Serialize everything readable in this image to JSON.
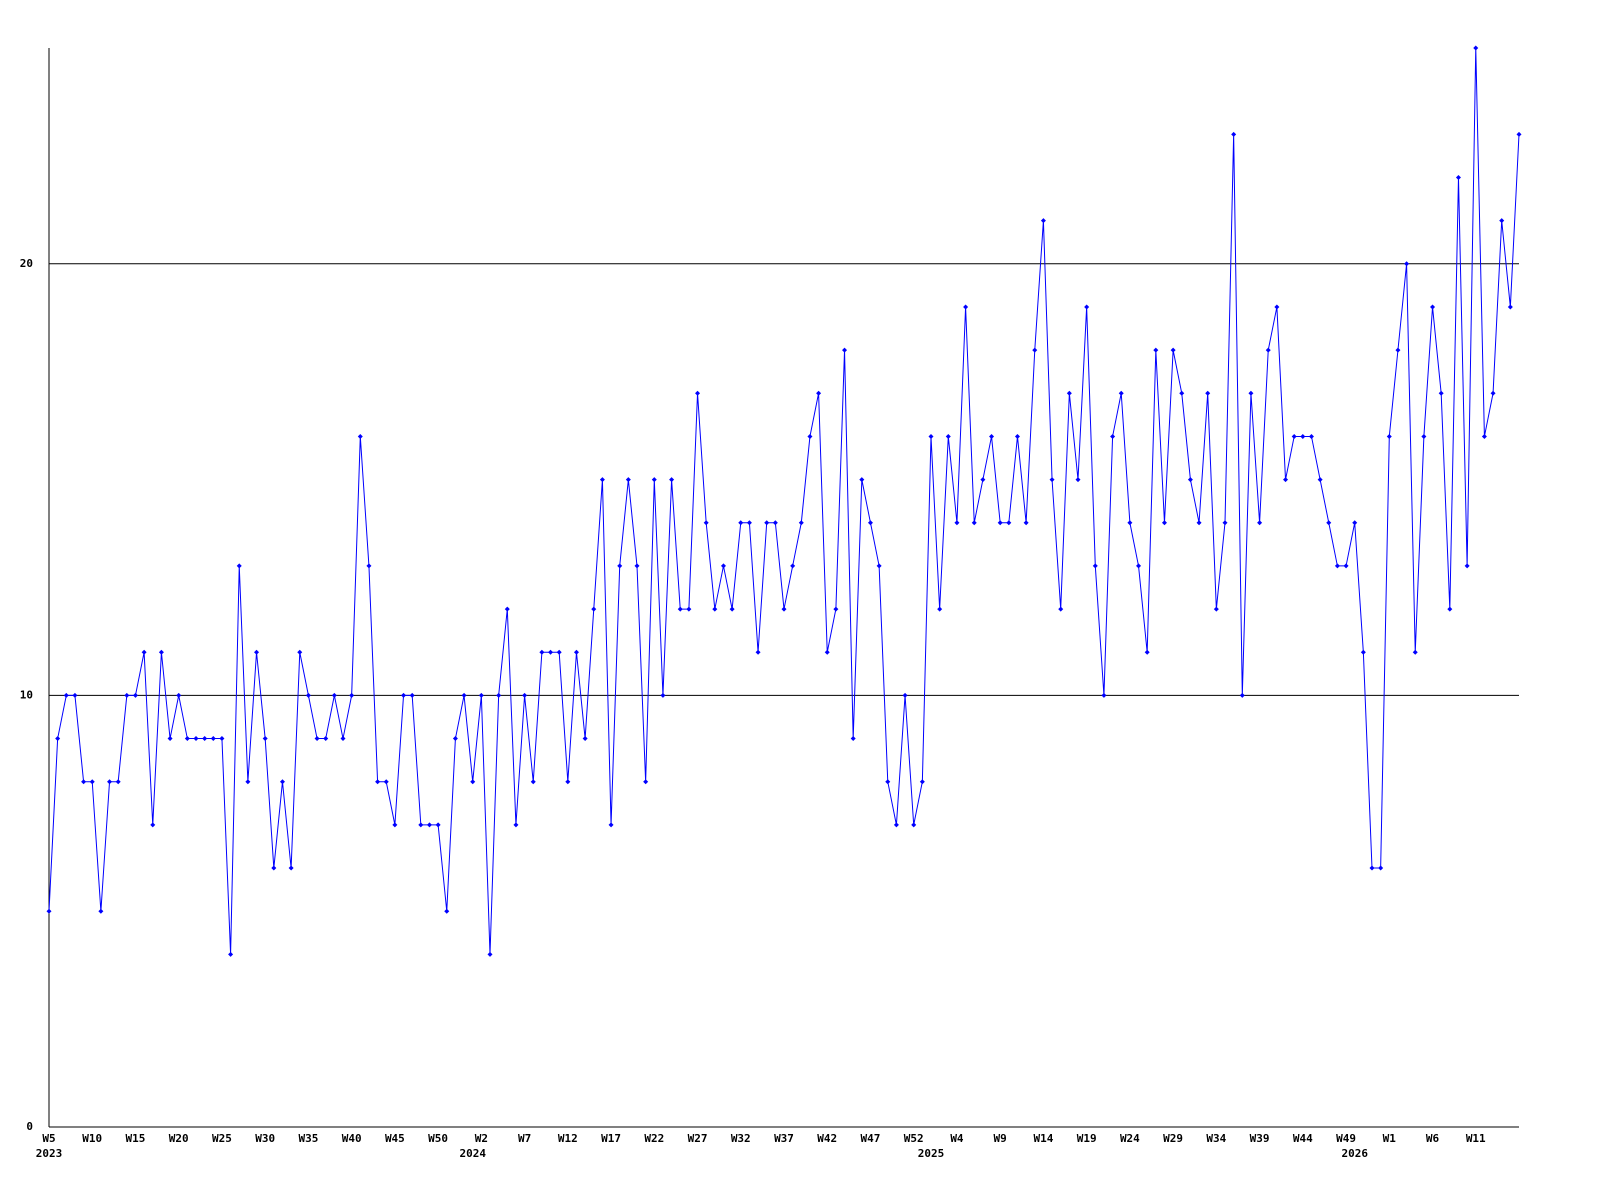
{
  "chart_data": {
    "type": "line",
    "categories": [
      "W5",
      null,
      null,
      null,
      null,
      "W10",
      null,
      null,
      null,
      null,
      "W15",
      null,
      null,
      null,
      null,
      "W20",
      null,
      null,
      null,
      null,
      "W25",
      null,
      null,
      null,
      null,
      "W30",
      null,
      null,
      null,
      null,
      "W35",
      null,
      null,
      null,
      null,
      "W40",
      null,
      null,
      null,
      null,
      "W45",
      null,
      null,
      null,
      null,
      "W50",
      null,
      null,
      null,
      null,
      "W2",
      null,
      null,
      null,
      null,
      "W7",
      null,
      null,
      null,
      null,
      "W12",
      null,
      null,
      null,
      null,
      "W17",
      null,
      null,
      null,
      null,
      "W22",
      null,
      null,
      null,
      null,
      "W27",
      null,
      null,
      null,
      null,
      "W32",
      null,
      null,
      null,
      null,
      "W37",
      null,
      null,
      null,
      null,
      "W42",
      null,
      null,
      null,
      null,
      "W47",
      null,
      null,
      null,
      null,
      "W52",
      null,
      null,
      null,
      null,
      "W4",
      null,
      null,
      null,
      null,
      "W9",
      null,
      null,
      null,
      null,
      "W14",
      null,
      null,
      null,
      null,
      "W19",
      null,
      null,
      null,
      null,
      "W24",
      null,
      null,
      null,
      null,
      "W29",
      null,
      null,
      null,
      null,
      "W34",
      null,
      null,
      null,
      null,
      "W39",
      null,
      null,
      null,
      null,
      "W44",
      null,
      null,
      null,
      null,
      "W49",
      null,
      null,
      null,
      null,
      "W1",
      null,
      null,
      null,
      null,
      "W6",
      null,
      null,
      null,
      null,
      "W11",
      null,
      null,
      null,
      null,
      null
    ],
    "category_years": [
      "2023",
      null,
      null,
      null,
      null,
      null,
      null,
      null,
      null,
      null,
      null,
      null,
      null,
      null,
      null,
      null,
      null,
      null,
      null,
      null,
      null,
      null,
      null,
      null,
      null,
      null,
      null,
      null,
      null,
      null,
      null,
      null,
      null,
      null,
      null,
      null,
      null,
      null,
      null,
      null,
      null,
      null,
      null,
      null,
      null,
      null,
      null,
      null,
      null,
      "2024",
      null,
      null,
      null,
      null,
      null,
      null,
      null,
      null,
      null,
      null,
      null,
      null,
      null,
      null,
      null,
      null,
      null,
      null,
      null,
      null,
      null,
      null,
      null,
      null,
      null,
      null,
      null,
      null,
      null,
      null,
      null,
      null,
      null,
      null,
      null,
      null,
      null,
      null,
      null,
      null,
      null,
      null,
      null,
      null,
      null,
      null,
      null,
      null,
      null,
      null,
      null,
      null,
      "2025",
      null,
      null,
      null,
      null,
      null,
      null,
      null,
      null,
      null,
      null,
      null,
      null,
      null,
      null,
      null,
      null,
      null,
      null,
      null,
      null,
      null,
      null,
      null,
      null,
      null,
      null,
      null,
      null,
      null,
      null,
      null,
      null,
      null,
      null,
      null,
      null,
      null,
      null,
      null,
      null,
      null,
      null,
      null,
      null,
      null,
      null,
      null,
      null,
      "2026",
      null,
      null,
      null,
      null,
      null,
      null,
      null,
      null,
      null,
      null,
      null,
      null,
      null,
      null,
      null
    ],
    "series": [
      {
        "color": "#0000ff",
        "values": [
          5,
          9,
          10,
          10,
          8,
          8,
          5,
          8,
          8,
          10,
          10,
          11,
          7,
          11,
          9,
          10,
          9,
          9,
          9,
          9,
          9,
          4,
          13,
          8,
          11,
          9,
          6,
          8,
          6,
          11,
          10,
          9,
          9,
          10,
          9,
          10,
          16,
          13,
          8,
          8,
          7,
          10,
          10,
          7,
          7,
          7,
          5,
          9,
          10,
          8,
          10,
          4,
          10,
          12,
          7,
          10,
          8,
          11,
          11,
          11,
          8,
          11,
          9,
          12,
          15,
          7,
          13,
          15,
          13,
          8,
          15,
          10,
          15,
          12,
          12,
          17,
          14,
          12,
          13,
          12,
          14,
          14,
          11,
          14,
          14,
          12,
          13,
          14,
          16,
          17,
          11,
          12,
          18,
          9,
          15,
          14,
          13,
          8,
          7,
          10,
          7,
          8,
          16,
          12,
          16,
          14,
          19,
          14,
          15,
          16,
          14,
          14,
          16,
          14,
          18,
          21,
          15,
          12,
          17,
          15,
          19,
          13,
          10,
          16,
          17,
          14,
          13,
          11,
          18,
          14,
          18,
          17,
          15,
          14,
          17,
          12,
          14,
          23,
          10,
          17,
          14,
          18,
          19,
          15,
          16,
          16,
          16,
          15,
          14,
          13,
          13,
          14,
          11,
          6,
          6,
          16,
          18,
          20,
          11,
          16,
          19,
          17,
          12,
          22,
          13,
          25,
          16,
          17,
          21,
          19,
          23
        ]
      }
    ],
    "ylim": [
      0,
      25
    ],
    "yticks": [
      0,
      10,
      20
    ],
    "grid": true
  }
}
